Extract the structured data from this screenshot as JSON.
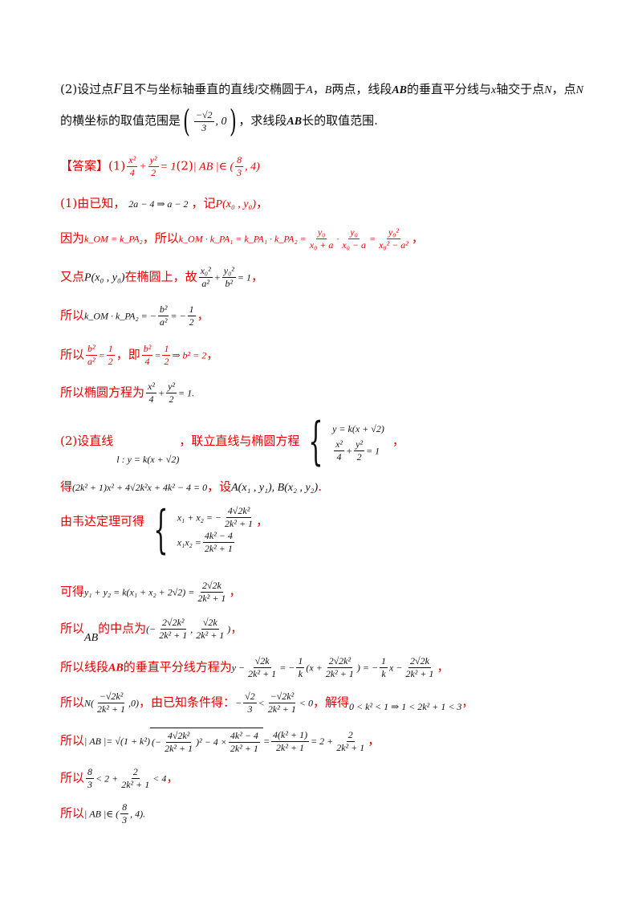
{
  "problem": {
    "prefix": "(2)设过点",
    "point_f": "F",
    "part1": "且不与坐标轴垂直的直线",
    "line_l": "l",
    "part2": "交椭圆于",
    "point_a": "A",
    "comma": "，",
    "point_b": "B",
    "part3": "两点，线段",
    "seg_ab": "AB",
    "part4": "的垂直平分线与",
    "axis_x": "x",
    "part5": "轴交于点",
    "point_n": "N",
    "part6": "，点",
    "point_n2": "N",
    "line2_prefix": "的横坐标的取值范围是",
    "range_num": "−√2",
    "range_den": "3",
    "range_right": ", 0",
    "line2_mid": "，求线段",
    "seg_ab2": "AB",
    "line2_suffix": "长的取值范围."
  },
  "answer": {
    "label": "【答案】",
    "part1": "(1)",
    "part1_x_num": "x²",
    "part1_x_den": "4",
    "part1_plus": "+",
    "part1_y_num": "y²",
    "part1_y_den": "2",
    "part1_eq": "= 1",
    "part2": "(2)",
    "part2_expr": "| AB |∈ (",
    "part2_num": "8",
    "part2_den": "3",
    "part2_end": ", 4)"
  },
  "solution": {
    "l1_text": "(1)由已知，",
    "l1_math": "2a − 4 ⇒ a − 2",
    "l1_text2": "，记",
    "l1_p": "P(x₀ , y₀)",
    "l1_end": "，",
    "l2_text": "因为",
    "l2_math1": "k_OM = k_PA₂",
    "l2_text2": "，所以",
    "l2_math2": "k_OM · k_PA₁ = k_PA₁ · k_PA₂ =",
    "l2_f1_num": "y₀",
    "l2_f1_den": "x₀ + a",
    "l2_dot": "·",
    "l2_f2_num": "y₀",
    "l2_f2_den": "x₀ − a",
    "l2_eq": "=",
    "l2_f3_num": "y₀²",
    "l2_f3_den": "x₀² − a²",
    "l2_end": "，",
    "l3_text": "又点",
    "l3_p": "P(x₀ , y₀)",
    "l3_text2": "在椭圆上，故",
    "l3_f1_num": "x₀²",
    "l3_f1_den": "a²",
    "l3_plus": "+",
    "l3_f2_num": "y₀²",
    "l3_f2_den": "b²",
    "l3_eq": "= 1",
    "l3_end": "，",
    "l4_text": "所以",
    "l4_math": "k_OM · k_PA₂ = −",
    "l4_f1_num": "b²",
    "l4_f1_den": "a²",
    "l4_eq": "= −",
    "l4_f2_num": "1",
    "l4_f2_den": "2",
    "l4_end": "，",
    "l5_text": "所以",
    "l5_f1_num": "b²",
    "l5_f1_den": "a²",
    "l5_eq": "=",
    "l5_f2_num": "1",
    "l5_f2_den": "2",
    "l5_text2": "，即",
    "l5_f3_num": "b²",
    "l5_f3_den": "4",
    "l5_eq2": "=",
    "l5_f4_num": "1",
    "l5_f4_den": "2",
    "l5_tail": "⇒ b² = 2",
    "l5_end": "，",
    "l6_text": "所以椭圆方程为",
    "l6_f1_num": "x²",
    "l6_f1_den": "4",
    "l6_plus": "+",
    "l6_f2_num": "y²",
    "l6_f2_den": "2",
    "l6_eq": "= 1.",
    "l7_text": "(2)设直线",
    "l7_line": "l : y = k(x + √2)",
    "l7_text2": "，联立直线与椭圆方程",
    "l7_sys1": "y = k(x + √2)",
    "l7_sys2_xnum": "x²",
    "l7_sys2_xden": "4",
    "l7_sys2_plus": "+",
    "l7_sys2_ynum": "y²",
    "l7_sys2_yden": "2",
    "l7_sys2_eq": "= 1",
    "l7_end": "，",
    "l8_text": "得",
    "l8_math": "(2k² + 1)x² + 4√2k²x + 4k² − 4 = 0",
    "l8_text2": "，设",
    "l8_pts": "A(x₁ , y₁), B(x₂ , y₂)",
    "l8_end": ".",
    "l9_text": "由韦达定理可得",
    "l9_r1_left": "x₁ + x₂ = −",
    "l9_r1_num": "4√2k²",
    "l9_r1_den": "2k² + 1",
    "l9_r2_left": "x₁x₂ =",
    "l9_r2_num": "4k² − 4",
    "l9_r2_den": "2k² + 1",
    "l9_end": "，",
    "l10_text": "可得",
    "l10_math": "y₁ + y₂ = k(x₁ + x₂ + 2√2) =",
    "l10_num": "2√2k",
    "l10_den": "2k² + 1",
    "l10_end": "，",
    "l11_text": "所以",
    "l11_ab": "AB",
    "l11_text2": "的中点为",
    "l11_open": "(−",
    "l11_f1_num": "2√2k²",
    "l11_f1_den": "2k² + 1",
    "l11_comma": ",",
    "l11_f2_num": "√2k",
    "l11_f2_den": "2k² + 1",
    "l11_close": ")",
    "l11_end": "，",
    "l12_text": "所以线段",
    "l12_ab": "AB",
    "l12_text2": "的垂直平分线方程为",
    "l12_a": "y −",
    "l12_f1_num": "√2k",
    "l12_f1_den": "2k² + 1",
    "l12_b": "= −",
    "l12_f2_num": "1",
    "l12_f2_den": "k",
    "l12_c": "(x +",
    "l12_f3_num": "2√2k²",
    "l12_f3_den": "2k² + 1",
    "l12_d": ") = −",
    "l12_f4_num": "1",
    "l12_f4_den": "k",
    "l12_e": "x −",
    "l12_f5_num": "2√2k",
    "l12_f5_den": "2k² + 1",
    "l12_end": "，",
    "l13_text": "所以",
    "l13_n": "N(",
    "l13_f1_num": "−√2k²",
    "l13_f1_den": "2k² + 1",
    "l13_n2": ",0)",
    "l13_text2": "，由已知条件得：",
    "l13_minus": "−",
    "l13_f2_num": "√2",
    "l13_f2_den": "3",
    "l13_lt": "<",
    "l13_f3_num": "−√2k²",
    "l13_f3_den": "2k² + 1",
    "l13_lt0": "< 0",
    "l13_text3": "，解得",
    "l13_result": "0 < k² < 1 ⇒ 1 < 2k² + 1 < 3",
    "l13_end": "，",
    "l14_text": "所以",
    "l14_a": "| AB |= √(1 + k²)",
    "l14_open": "(−",
    "l14_f1_num": "4√2k²",
    "l14_f1_den": "2k² + 1",
    "l14_mid": ")² − 4 ×",
    "l14_f2_num": "4k² − 4",
    "l14_f2_den": "2k² + 1",
    "l14_eq": "=",
    "l14_f3_num": "4(k² + 1)",
    "l14_f3_den": "2k² + 1",
    "l14_eq2": "= 2 +",
    "l14_f4_num": "2",
    "l14_f4_den": "2k² + 1",
    "l14_end": "，",
    "l15_text": "所以",
    "l15_f1_num": "8",
    "l15_f1_den": "3",
    "l15_mid": "< 2 +",
    "l15_f2_num": "2",
    "l15_f2_den": "2k² + 1",
    "l15_lt": "< 4",
    "l15_end": "，",
    "l16_text": "所以",
    "l16_a": "| AB |∈ (",
    "l16_num": "8",
    "l16_den": "3",
    "l16_end": ", 4)."
  },
  "colors": {
    "accent": "#e60000",
    "text": "#111111"
  }
}
